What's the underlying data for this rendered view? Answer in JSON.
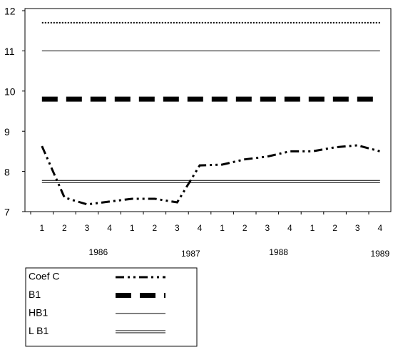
{
  "chart_data": {
    "type": "line",
    "categories": [
      "1",
      "2",
      "3",
      "4",
      "1",
      "2",
      "3",
      "4",
      "1",
      "2",
      "3",
      "4",
      "1",
      "2",
      "3",
      "4"
    ],
    "year_labels": [
      "1986",
      "1987",
      "1988",
      "1989"
    ],
    "ylim": [
      7,
      12
    ],
    "yticks": [
      7,
      8,
      9,
      10,
      11,
      12
    ],
    "series": [
      {
        "name": "Coef C",
        "color": "#000000",
        "style": "dash-dot-dot",
        "values": [
          8.63,
          7.35,
          7.18,
          7.25,
          7.32,
          7.32,
          7.23,
          8.15,
          8.17,
          8.3,
          8.37,
          8.5,
          8.5,
          8.6,
          8.65,
          8.5
        ]
      },
      {
        "name": "B1",
        "color": "#000000",
        "style": "dashed",
        "values": [
          9.8,
          9.8,
          9.8,
          9.8,
          9.8,
          9.8,
          9.8,
          9.8,
          9.8,
          9.8,
          9.8,
          9.8,
          9.8,
          9.8,
          9.8,
          9.8
        ]
      },
      {
        "name": "HB1",
        "color": "#000000",
        "style": "solid",
        "values": [
          11,
          11,
          11,
          11,
          11,
          11,
          11,
          11,
          11,
          11,
          11,
          11,
          11,
          11,
          11,
          11
        ]
      },
      {
        "name": "L B1",
        "color": "#000000",
        "style": "double",
        "values": [
          7.75,
          7.75,
          7.75,
          7.75,
          7.75,
          7.75,
          7.75,
          7.75,
          7.75,
          7.75,
          7.75,
          7.75,
          7.75,
          7.75,
          7.75,
          7.75
        ]
      },
      {
        "color": "#000000",
        "style": "dotted",
        "values": [
          11.7,
          11.7,
          11.7,
          11.7,
          11.7,
          11.7,
          11.7,
          11.7,
          11.7,
          11.7,
          11.7,
          11.7,
          11.7,
          11.7,
          11.7,
          11.7
        ]
      }
    ]
  }
}
